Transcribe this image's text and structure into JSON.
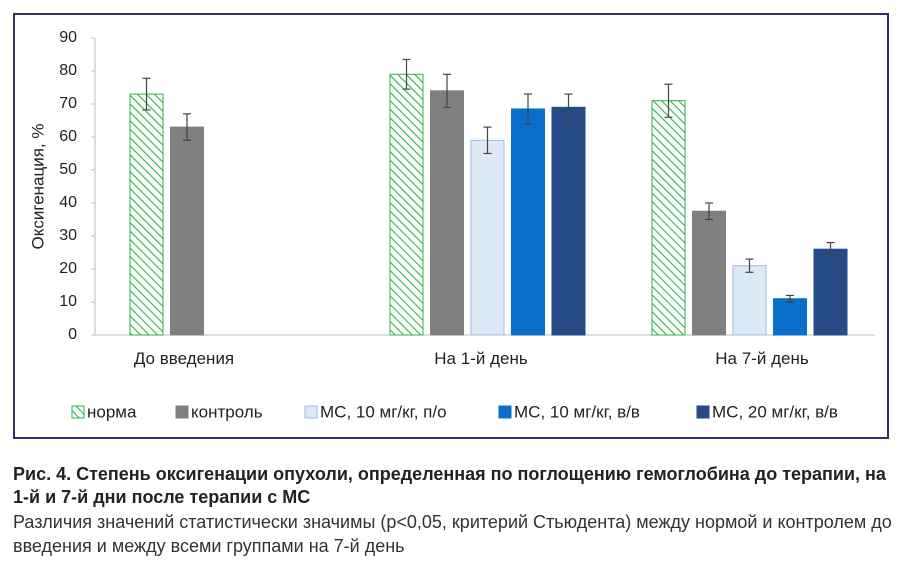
{
  "chart_data": {
    "type": "bar",
    "ylabel": "Оксигенация, %",
    "ylim": [
      0,
      90
    ],
    "yticks": [
      0,
      10,
      20,
      30,
      40,
      50,
      60,
      70,
      80,
      90
    ],
    "grid": false,
    "legend_position": "bottom",
    "categories": [
      "До введения",
      "На 1-й день",
      "На 7-й день"
    ],
    "series": [
      {
        "name": "норма",
        "color": "#2db34a",
        "pattern": "hatch",
        "values": [
          73,
          79,
          71
        ],
        "errors": [
          4.8,
          4.5,
          5
        ]
      },
      {
        "name": "контроль",
        "color": "#808080",
        "pattern": "solid",
        "values": [
          63,
          74,
          37.5
        ],
        "errors": [
          4,
          5,
          2.5
        ]
      },
      {
        "name": "МС, 10 мг/кг, п/о",
        "color": "#dde9f7",
        "pattern": "light",
        "values": [
          null,
          59,
          21
        ],
        "errors": [
          null,
          4,
          2
        ]
      },
      {
        "name": "МС, 10 мг/кг, в/в",
        "color": "#0a6fc9",
        "pattern": "solid",
        "values": [
          null,
          68.5,
          11
        ],
        "errors": [
          null,
          4.5,
          1
        ]
      },
      {
        "name": "МС, 20 мг/кг, в/в",
        "color": "#254a86",
        "pattern": "solid",
        "values": [
          null,
          69,
          26
        ],
        "errors": [
          null,
          4,
          2
        ]
      }
    ]
  },
  "caption": {
    "title": "Рис. 4. Степень оксигенации опухоли, определенная по поглощению гемоглобина до терапии, на 1-й и 7-й дни после терапии с МС",
    "note": "Различия значений статистически значимы (p<0,05, критерий Стьюдента) между нормой и контролем до введения и между всеми группами на 7-й день"
  }
}
